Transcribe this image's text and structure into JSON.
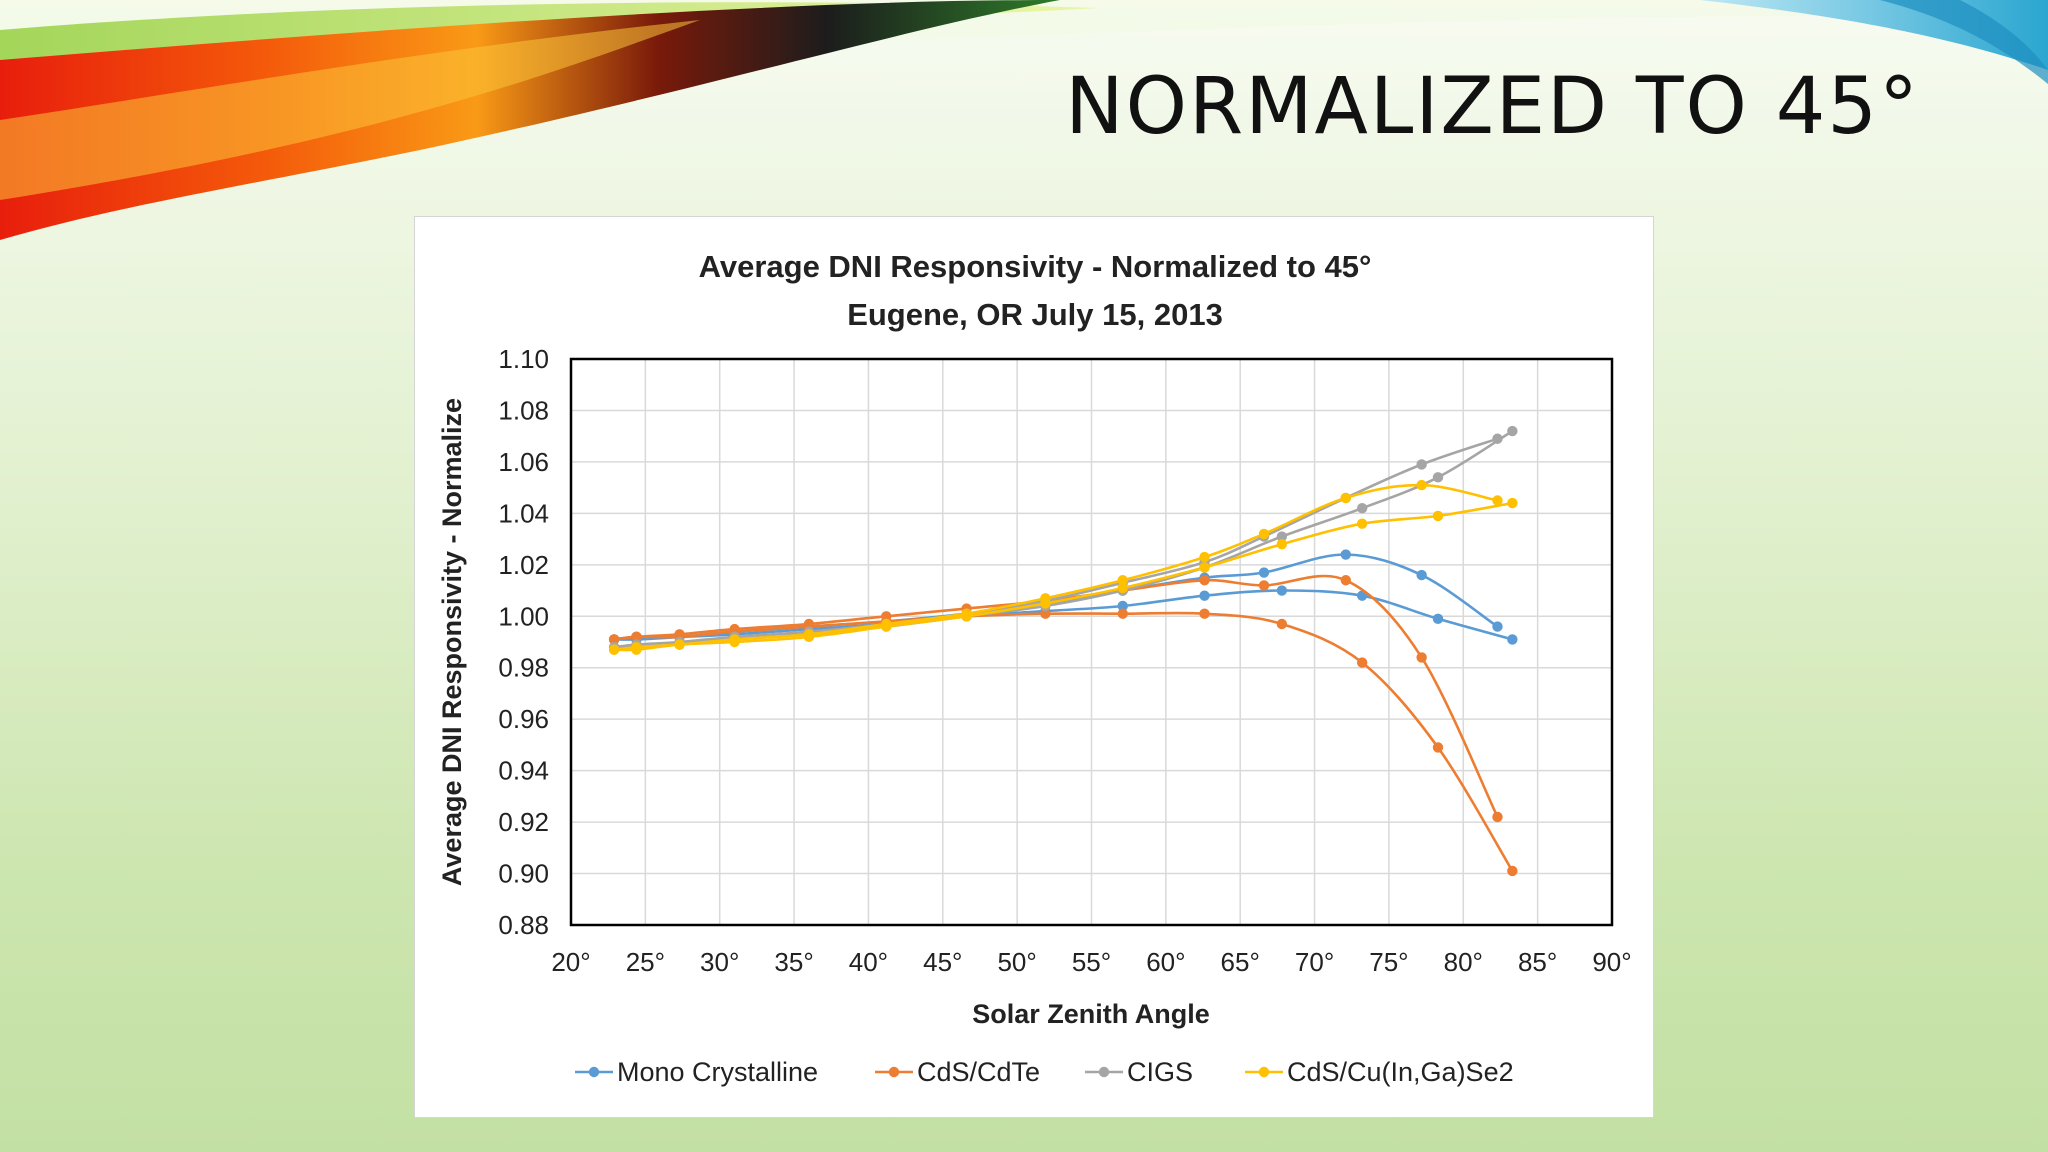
{
  "slide": {
    "title": "NORMALIZED TO 45°"
  },
  "colors": {
    "mono": "#5b9bd5",
    "cdte": "#ed7d31",
    "cigs": "#a5a5a5",
    "cuinse": "#ffc000"
  },
  "chart_data": {
    "type": "line",
    "title": "Average DNI Responsivity - Normalized to 45°",
    "subtitle": "Eugene, OR  July 15, 2013",
    "xlabel": "Solar Zenith Angle",
    "ylabel": "Average DNI Responsivity - Normalize",
    "xlim": [
      20,
      90
    ],
    "ylim": [
      0.88,
      1.1
    ],
    "x_ticks": [
      20,
      25,
      30,
      35,
      40,
      45,
      50,
      55,
      60,
      65,
      70,
      75,
      80,
      85,
      90
    ],
    "x_tick_labels": [
      "20°",
      "25°",
      "30°",
      "35°",
      "40°",
      "45°",
      "50°",
      "55°",
      "60°",
      "65°",
      "70°",
      "75°",
      "80°",
      "85°",
      "90°"
    ],
    "y_ticks": [
      0.88,
      0.9,
      0.92,
      0.94,
      0.96,
      0.98,
      1.0,
      1.02,
      1.04,
      1.06,
      1.08,
      1.1
    ],
    "y_tick_labels": [
      "0.88",
      "0.90",
      "0.92",
      "0.94",
      "0.96",
      "0.98",
      "1.00",
      "1.02",
      "1.04",
      "1.06",
      "1.08",
      "1.10"
    ],
    "grid": true,
    "legend_position": "bottom",
    "series": [
      {
        "name": "Mono Crystalline",
        "color": "#5b9bd5",
        "points": [
          [
            [
              22.9,
              0.991
            ],
            [
              24.4,
              0.992
            ],
            [
              27.3,
              0.992
            ],
            [
              31.0,
              0.993
            ],
            [
              36.0,
              0.995
            ],
            [
              41.2,
              0.997
            ],
            [
              46.6,
              1.0
            ],
            [
              51.9,
              1.002
            ],
            [
              57.1,
              1.004
            ],
            [
              62.6,
              1.008
            ],
            [
              67.8,
              1.01
            ],
            [
              73.2,
              1.008
            ],
            [
              78.3,
              0.999
            ],
            [
              83.3,
              0.991
            ]
          ],
          [
            [
              22.9,
              0.991
            ],
            [
              24.4,
              0.991
            ],
            [
              27.3,
              0.992
            ],
            [
              31.0,
              0.994
            ],
            [
              36.0,
              0.996
            ],
            [
              41.2,
              0.998
            ],
            [
              46.6,
              1.001
            ],
            [
              51.9,
              1.005
            ],
            [
              57.1,
              1.01
            ],
            [
              62.6,
              1.015
            ],
            [
              66.6,
              1.017
            ],
            [
              72.1,
              1.024
            ],
            [
              77.2,
              1.016
            ],
            [
              82.3,
              0.996
            ]
          ]
        ]
      },
      {
        "name": "CdS/CdTe",
        "color": "#ed7d31",
        "points": [
          [
            [
              22.9,
              0.991
            ],
            [
              24.4,
              0.992
            ],
            [
              27.3,
              0.992
            ],
            [
              31.0,
              0.994
            ],
            [
              36.0,
              0.996
            ],
            [
              41.2,
              0.998
            ],
            [
              46.6,
              1.0
            ],
            [
              51.9,
              1.001
            ],
            [
              57.1,
              1.001
            ],
            [
              62.6,
              1.001
            ],
            [
              67.8,
              0.997
            ],
            [
              73.2,
              0.982
            ],
            [
              78.3,
              0.949
            ],
            [
              83.3,
              0.901
            ]
          ],
          [
            [
              22.9,
              0.991
            ],
            [
              24.4,
              0.992
            ],
            [
              27.3,
              0.993
            ],
            [
              31.0,
              0.995
            ],
            [
              36.0,
              0.997
            ],
            [
              41.2,
              1.0
            ],
            [
              46.6,
              1.003
            ],
            [
              51.9,
              1.006
            ],
            [
              57.1,
              1.01
            ],
            [
              62.6,
              1.014
            ],
            [
              66.6,
              1.012
            ],
            [
              72.1,
              1.014
            ],
            [
              77.2,
              0.984
            ],
            [
              82.3,
              0.922
            ]
          ]
        ]
      },
      {
        "name": "CIGS",
        "color": "#a5a5a5",
        "points": [
          [
            [
              22.9,
              0.988
            ],
            [
              24.4,
              0.988
            ],
            [
              27.3,
              0.989
            ],
            [
              31.0,
              0.991
            ],
            [
              36.0,
              0.993
            ],
            [
              41.2,
              0.996
            ],
            [
              46.6,
              1.0
            ],
            [
              51.9,
              1.004
            ],
            [
              57.1,
              1.01
            ],
            [
              62.6,
              1.019
            ],
            [
              67.8,
              1.031
            ],
            [
              73.2,
              1.042
            ],
            [
              78.3,
              1.054
            ],
            [
              83.3,
              1.072
            ]
          ],
          [
            [
              22.9,
              0.988
            ],
            [
              24.4,
              0.989
            ],
            [
              27.3,
              0.99
            ],
            [
              31.0,
              0.992
            ],
            [
              36.0,
              0.994
            ],
            [
              41.2,
              0.997
            ],
            [
              46.6,
              1.001
            ],
            [
              51.9,
              1.006
            ],
            [
              57.1,
              1.013
            ],
            [
              62.6,
              1.021
            ],
            [
              66.6,
              1.031
            ],
            [
              72.1,
              1.046
            ],
            [
              77.2,
              1.059
            ],
            [
              82.3,
              1.069
            ]
          ]
        ]
      },
      {
        "name": "CdS/Cu(In,Ga)Se2",
        "color": "#ffc000",
        "points": [
          [
            [
              22.9,
              0.987
            ],
            [
              24.4,
              0.987
            ],
            [
              27.3,
              0.989
            ],
            [
              31.0,
              0.99
            ],
            [
              36.0,
              0.992
            ],
            [
              41.2,
              0.996
            ],
            [
              46.6,
              1.0
            ],
            [
              51.9,
              1.005
            ],
            [
              57.1,
              1.011
            ],
            [
              62.6,
              1.019
            ],
            [
              67.8,
              1.028
            ],
            [
              73.2,
              1.036
            ],
            [
              78.3,
              1.039
            ],
            [
              83.3,
              1.044
            ]
          ],
          [
            [
              22.9,
              0.987
            ],
            [
              24.4,
              0.988
            ],
            [
              27.3,
              0.989
            ],
            [
              31.0,
              0.991
            ],
            [
              36.0,
              0.993
            ],
            [
              41.2,
              0.997
            ],
            [
              46.6,
              1.001
            ],
            [
              51.9,
              1.007
            ],
            [
              57.1,
              1.014
            ],
            [
              62.6,
              1.023
            ],
            [
              66.6,
              1.032
            ],
            [
              72.1,
              1.046
            ],
            [
              77.2,
              1.051
            ],
            [
              82.3,
              1.045
            ]
          ]
        ]
      }
    ]
  }
}
